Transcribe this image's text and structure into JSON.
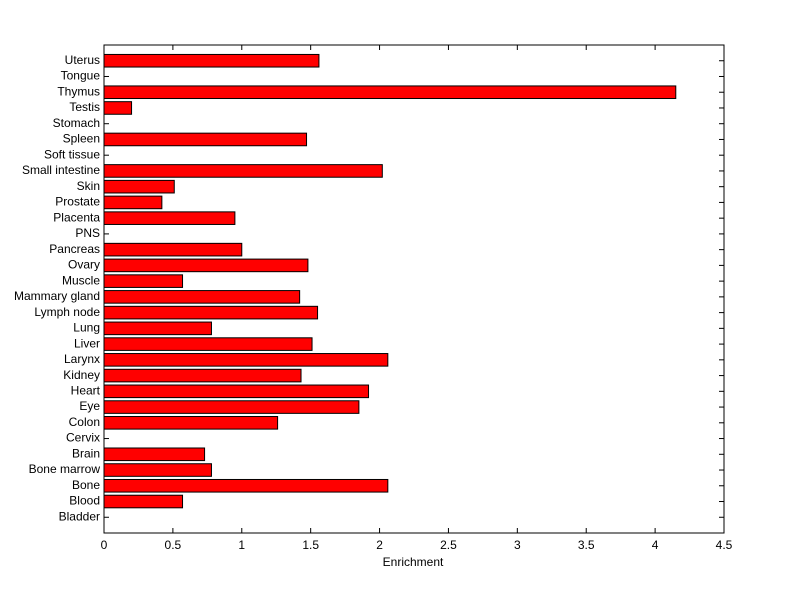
{
  "chart_data": {
    "type": "barh",
    "x_label": "Enrichment",
    "categories": [
      "Uterus",
      "Tongue",
      "Thymus",
      "Testis",
      "Stomach",
      "Spleen",
      "Soft tissue",
      "Small intestine",
      "Skin",
      "Prostate",
      "Placenta",
      "PNS",
      "Pancreas",
      "Ovary",
      "Muscle",
      "Mammary gland",
      "Lymph node",
      "Lung",
      "Liver",
      "Larynx",
      "Kidney",
      "Heart",
      "Eye",
      "Colon",
      "Cervix",
      "Brain",
      "Bone marrow",
      "Bone",
      "Blood",
      "Bladder"
    ],
    "values": [
      1.56,
      0,
      4.15,
      0.2,
      0,
      1.47,
      0,
      2.02,
      0.51,
      0.42,
      0.95,
      0,
      1.0,
      1.48,
      0.57,
      1.42,
      1.55,
      0.78,
      1.51,
      2.06,
      1.43,
      1.92,
      1.85,
      1.26,
      0,
      0.73,
      0.78,
      2.06,
      0.57,
      0
    ],
    "color": "#ff0000",
    "xlim": [
      0,
      4.5
    ],
    "xticks": [
      0,
      0.5,
      1,
      1.5,
      2,
      2.5,
      3,
      3.5,
      4,
      4.5
    ]
  }
}
